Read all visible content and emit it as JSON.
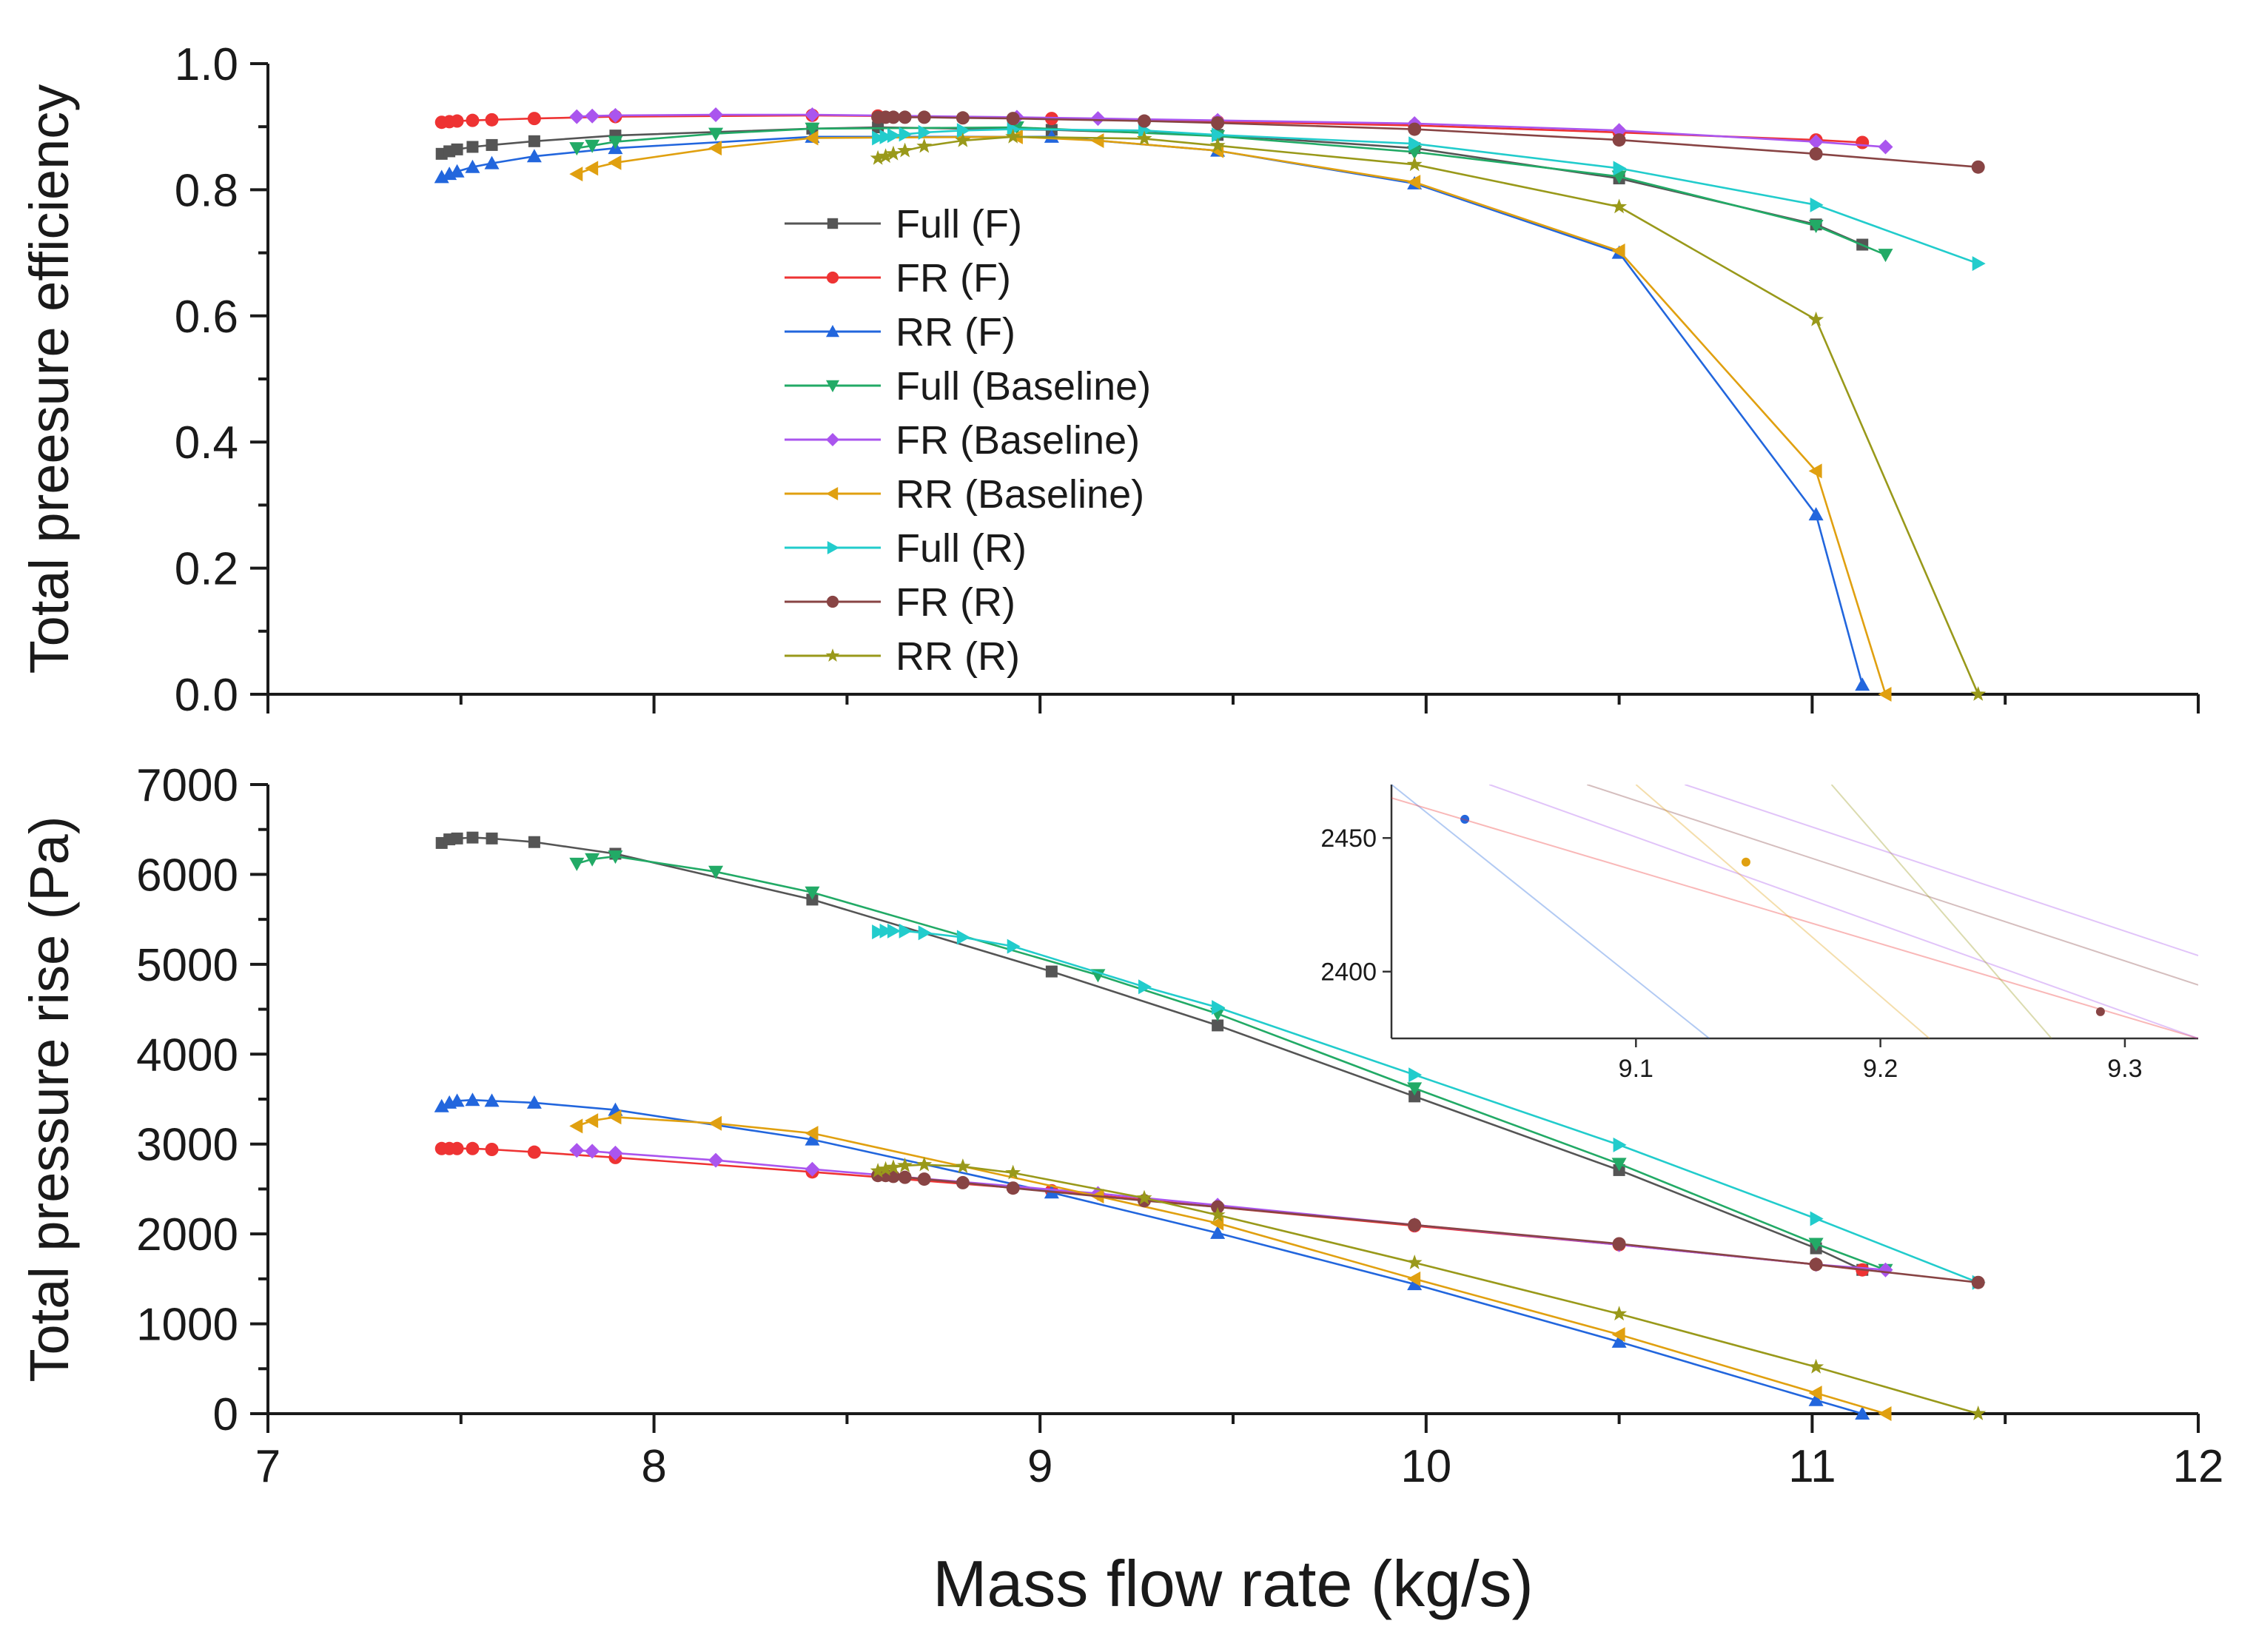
{
  "figure": {
    "xlabel": "Mass flow rate (kg/s)"
  },
  "chart_data": [
    {
      "type": "line",
      "panel": "top",
      "ylabel": "Total preesure efficiency",
      "xlim": [
        7,
        12
      ],
      "ylim": [
        0,
        1
      ],
      "xticks": [
        "7",
        "8",
        "9",
        "10",
        "11",
        "12"
      ],
      "yticks": [
        "0.0",
        "0.2",
        "0.4",
        "0.6",
        "0.8",
        "1.0"
      ],
      "legend_position": "center-left",
      "series": [
        {
          "name": "Full (F)",
          "color": "#555555",
          "marker": "square",
          "x": [
            7.45,
            7.47,
            7.49,
            7.53,
            7.58,
            7.69,
            7.9,
            8.41,
            8.58,
            9.03,
            9.46,
            9.97,
            10.5,
            11.01,
            11.13
          ],
          "y": [
            0.857,
            0.861,
            0.864,
            0.868,
            0.871,
            0.877,
            0.886,
            0.897,
            0.899,
            0.895,
            0.887,
            0.866,
            0.818,
            0.745,
            0.713
          ]
        },
        {
          "name": "FR (F)",
          "color": "#ee3333",
          "marker": "circle",
          "x": [
            7.45,
            7.47,
            7.49,
            7.53,
            7.58,
            7.69,
            7.9,
            8.41,
            8.58,
            9.03,
            9.46,
            9.97,
            10.5,
            11.01,
            11.13
          ],
          "y": [
            0.907,
            0.908,
            0.909,
            0.91,
            0.911,
            0.913,
            0.916,
            0.918,
            0.917,
            0.913,
            0.908,
            0.902,
            0.891,
            0.879,
            0.875
          ]
        },
        {
          "name": "RR (F)",
          "color": "#2266dd",
          "marker": "triangle-up",
          "x": [
            7.45,
            7.47,
            7.49,
            7.53,
            7.58,
            7.69,
            7.9,
            8.41,
            9.03,
            9.46,
            9.97,
            10.5,
            11.01,
            11.13
          ],
          "y": [
            0.82,
            0.825,
            0.829,
            0.836,
            0.842,
            0.853,
            0.866,
            0.884,
            0.884,
            0.862,
            0.81,
            0.7,
            0.285,
            0.015
          ]
        },
        {
          "name": "Full (Baseline)",
          "color": "#22aa66",
          "marker": "triangle-down",
          "x": [
            7.8,
            7.84,
            7.9,
            8.16,
            8.41,
            8.94,
            9.46,
            9.97,
            10.5,
            11.01,
            11.19
          ],
          "y": [
            0.866,
            0.87,
            0.876,
            0.889,
            0.897,
            0.899,
            0.885,
            0.86,
            0.821,
            0.743,
            0.697
          ]
        },
        {
          "name": "FR (Baseline)",
          "color": "#aa55ee",
          "marker": "diamond",
          "x": [
            7.8,
            7.84,
            7.9,
            8.16,
            8.41,
            8.94,
            9.15,
            9.46,
            9.97,
            10.5,
            11.01,
            11.19
          ],
          "y": [
            0.916,
            0.917,
            0.918,
            0.919,
            0.919,
            0.915,
            0.913,
            0.91,
            0.905,
            0.894,
            0.876,
            0.868
          ]
        },
        {
          "name": "RR (Baseline)",
          "color": "#e0a010",
          "marker": "triangle-left",
          "x": [
            7.8,
            7.84,
            7.9,
            8.16,
            8.41,
            8.94,
            9.15,
            9.46,
            9.97,
            10.5,
            11.01,
            11.19
          ],
          "y": [
            0.825,
            0.834,
            0.843,
            0.866,
            0.882,
            0.884,
            0.878,
            0.862,
            0.812,
            0.703,
            0.354,
            0.0
          ]
        },
        {
          "name": "Full (R)",
          "color": "#22cccc",
          "marker": "triangle-right",
          "x": [
            8.58,
            8.6,
            8.62,
            8.65,
            8.7,
            8.8,
            8.93,
            9.27,
            9.46,
            9.97,
            10.5,
            11.01,
            11.43
          ],
          "y": [
            0.882,
            0.884,
            0.886,
            0.888,
            0.891,
            0.894,
            0.896,
            0.894,
            0.887,
            0.873,
            0.834,
            0.776,
            0.683
          ]
        },
        {
          "name": "FR (R)",
          "color": "#884444",
          "marker": "circle",
          "x": [
            8.58,
            8.6,
            8.62,
            8.65,
            8.7,
            8.8,
            8.93,
            9.27,
            9.46,
            9.97,
            10.5,
            11.01,
            11.43
          ],
          "y": [
            0.915,
            0.915,
            0.915,
            0.915,
            0.915,
            0.914,
            0.913,
            0.909,
            0.906,
            0.896,
            0.879,
            0.857,
            0.836
          ]
        },
        {
          "name": "RR (R)",
          "color": "#99991a",
          "marker": "star",
          "x": [
            8.58,
            8.6,
            8.62,
            8.65,
            8.7,
            8.8,
            8.93,
            9.27,
            9.46,
            9.97,
            10.5,
            11.01,
            11.43
          ],
          "y": [
            0.85,
            0.853,
            0.857,
            0.862,
            0.869,
            0.878,
            0.884,
            0.881,
            0.87,
            0.84,
            0.773,
            0.594,
            0.0
          ]
        }
      ]
    },
    {
      "type": "line",
      "panel": "bottom",
      "ylabel": "Total pressure rise (Pa)",
      "xlabel": "Mass flow rate (kg/s)",
      "xlim": [
        7,
        12
      ],
      "ylim": [
        0,
        7000
      ],
      "xticks": [
        "7",
        "8",
        "9",
        "10",
        "11",
        "12"
      ],
      "yticks": [
        "0",
        "1000",
        "2000",
        "3000",
        "4000",
        "5000",
        "6000",
        "7000"
      ],
      "series": [
        {
          "name": "Full (F)",
          "color": "#555555",
          "marker": "square",
          "x": [
            7.45,
            7.47,
            7.49,
            7.53,
            7.58,
            7.69,
            7.9,
            8.41,
            9.03,
            9.46,
            9.97,
            10.5,
            11.01,
            11.13
          ],
          "y": [
            6350,
            6390,
            6400,
            6410,
            6400,
            6360,
            6230,
            5720,
            4920,
            4320,
            3530,
            2710,
            1840,
            1600
          ]
        },
        {
          "name": "FR (F)",
          "color": "#ee3333",
          "marker": "circle",
          "x": [
            7.45,
            7.47,
            7.49,
            7.53,
            7.58,
            7.69,
            7.9,
            8.41,
            9.03,
            9.46,
            9.97,
            10.5,
            11.01,
            11.13
          ],
          "y": [
            2950,
            2950,
            2950,
            2950,
            2940,
            2910,
            2850,
            2690,
            2480,
            2300,
            2090,
            1880,
            1660,
            1600
          ]
        },
        {
          "name": "RR (F)",
          "color": "#2266dd",
          "marker": "triangle-up",
          "x": [
            7.45,
            7.47,
            7.49,
            7.53,
            7.58,
            7.69,
            7.9,
            8.41,
            9.03,
            9.46,
            9.97,
            10.5,
            11.01,
            11.13
          ],
          "y": [
            3420,
            3460,
            3480,
            3490,
            3480,
            3460,
            3380,
            3050,
            2460,
            2010,
            1440,
            800,
            150,
            0
          ]
        },
        {
          "name": "Full (Baseline)",
          "color": "#22aa66",
          "marker": "triangle-down",
          "x": [
            7.8,
            7.84,
            7.9,
            8.16,
            8.41,
            9.15,
            9.46,
            9.97,
            10.5,
            11.01,
            11.19
          ],
          "y": [
            6120,
            6170,
            6200,
            6030,
            5800,
            4880,
            4450,
            3620,
            2780,
            1890,
            1600
          ]
        },
        {
          "name": "FR (Baseline)",
          "color": "#aa55ee",
          "marker": "diamond",
          "x": [
            7.8,
            7.84,
            7.9,
            8.16,
            8.41,
            9.15,
            9.46,
            9.97,
            10.5,
            11.01,
            11.19
          ],
          "y": [
            2930,
            2920,
            2900,
            2820,
            2720,
            2450,
            2320,
            2100,
            1880,
            1660,
            1600
          ]
        },
        {
          "name": "RR (Baseline)",
          "color": "#e0a010",
          "marker": "triangle-left",
          "x": [
            7.8,
            7.84,
            7.9,
            8.16,
            8.41,
            9.15,
            9.46,
            9.97,
            10.5,
            11.01,
            11.19
          ],
          "y": [
            3200,
            3260,
            3300,
            3230,
            3120,
            2420,
            2120,
            1500,
            880,
            230,
            0
          ]
        },
        {
          "name": "Full (R)",
          "color": "#22cccc",
          "marker": "triangle-right",
          "x": [
            8.58,
            8.6,
            8.62,
            8.65,
            8.7,
            8.8,
            8.93,
            9.27,
            9.46,
            9.97,
            10.5,
            11.01,
            11.43
          ],
          "y": [
            5360,
            5370,
            5370,
            5370,
            5350,
            5300,
            5200,
            4750,
            4520,
            3770,
            2990,
            2170,
            1460
          ]
        },
        {
          "name": "FR (R)",
          "color": "#884444",
          "marker": "circle",
          "x": [
            8.58,
            8.6,
            8.62,
            8.65,
            8.7,
            8.8,
            8.93,
            9.27,
            9.46,
            9.97,
            10.5,
            11.01,
            11.43
          ],
          "y": [
            2650,
            2650,
            2640,
            2630,
            2610,
            2570,
            2510,
            2370,
            2300,
            2100,
            1890,
            1660,
            1460
          ]
        },
        {
          "name": "RR (R)",
          "color": "#99991a",
          "marker": "star",
          "x": [
            8.58,
            8.6,
            8.62,
            8.65,
            8.7,
            8.8,
            8.93,
            9.27,
            9.46,
            9.97,
            10.5,
            11.01,
            11.43
          ],
          "y": [
            2700,
            2720,
            2740,
            2760,
            2770,
            2750,
            2680,
            2400,
            2210,
            1680,
            1110,
            520,
            0
          ]
        }
      ]
    },
    {
      "type": "line",
      "panel": "inset",
      "xlim": [
        9.0,
        9.33
      ],
      "ylim": [
        2375,
        2470
      ],
      "xticks": [
        "9.1",
        "9.2",
        "9.3"
      ],
      "yticks": [
        "2400",
        "2450"
      ],
      "series": [
        {
          "name": "blue",
          "color": "#2266dd",
          "x": [
            9.0,
            9.13
          ],
          "y": [
            2470,
            2375
          ],
          "marker_at": [
            9.03,
            2457
          ]
        },
        {
          "name": "red",
          "color": "#ee3333",
          "x": [
            9.0,
            9.33
          ],
          "y": [
            2465,
            2375
          ],
          "marker_at": null
        },
        {
          "name": "purple",
          "color": "#aa55ee",
          "x": [
            9.04,
            9.33
          ],
          "y": [
            2470,
            2375
          ],
          "marker_at": null
        },
        {
          "name": "brown",
          "color": "#884444",
          "x": [
            9.08,
            9.33
          ],
          "y": [
            2470,
            2395
          ],
          "marker_at": [
            9.29,
            2385
          ]
        },
        {
          "name": "orange",
          "color": "#e0a010",
          "x": [
            9.1,
            9.22
          ],
          "y": [
            2470,
            2375
          ],
          "marker_at": [
            9.145,
            2441
          ]
        },
        {
          "name": "olive",
          "color": "#99991a",
          "x": [
            9.18,
            9.27
          ],
          "y": [
            2470,
            2375
          ],
          "marker_at": null
        },
        {
          "name": "lavender",
          "color": "#aa55ee",
          "x": [
            9.12,
            9.33
          ],
          "y": [
            2470,
            2406
          ],
          "marker_at": null
        }
      ]
    }
  ]
}
